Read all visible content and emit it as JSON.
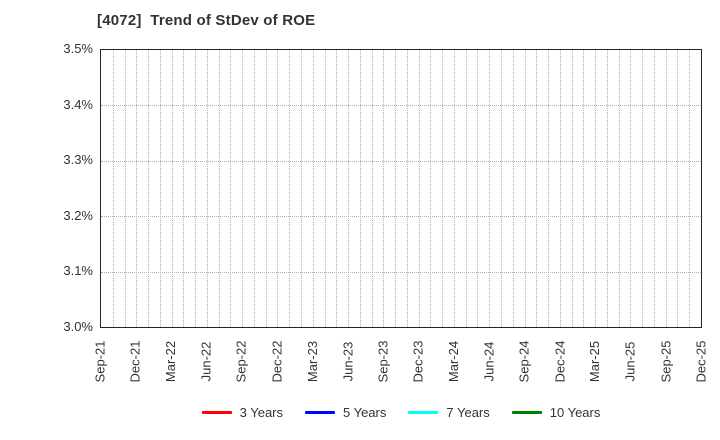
{
  "chart_data": {
    "type": "line",
    "title": "[4072]  Trend of StDev of ROE",
    "x_tick_labels": [
      "Sep-21",
      "Dec-21",
      "Mar-22",
      "Jun-22",
      "Sep-22",
      "Dec-22",
      "Mar-23",
      "Jun-23",
      "Sep-23",
      "Dec-23",
      "Mar-24",
      "Jun-24",
      "Sep-24",
      "Dec-24",
      "Mar-25",
      "Jun-25",
      "Sep-25",
      "Dec-25"
    ],
    "x_minor_grid_intervals": 51,
    "y_tick_labels": [
      "3.0%",
      "3.1%",
      "3.2%",
      "3.3%",
      "3.4%",
      "3.5%"
    ],
    "ylim": [
      3.0,
      3.5
    ],
    "ylabel": "",
    "xlabel": "",
    "grid": {
      "vertical": "monthly dotted",
      "horizontal": "every 0.1% dotted"
    },
    "legend_position": "bottom-center",
    "series": [
      {
        "name": "3 Years",
        "color": "#ff0000",
        "values": []
      },
      {
        "name": "5 Years",
        "color": "#0000ff",
        "values": []
      },
      {
        "name": "7 Years",
        "color": "#00ffff",
        "values": []
      },
      {
        "name": "10 Years",
        "color": "#008000",
        "values": []
      }
    ],
    "plotted_points_visible": false
  },
  "colors": {
    "axis_border": "#262626",
    "gridline": "#b0b0b0",
    "text": "#333333",
    "background": "#ffffff"
  }
}
